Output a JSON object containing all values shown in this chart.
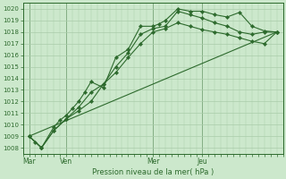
{
  "bg_color": "#cce8cc",
  "grid_color": "#aaccaa",
  "line_color": "#2d6a2d",
  "marker_color": "#2d6a2d",
  "title": "Pression niveau de la mer( hPa )",
  "ylim": [
    1007.5,
    1020.5
  ],
  "day_labels": [
    "Mar",
    "Ven",
    "Mer",
    "Jeu"
  ],
  "day_positions": [
    0,
    6,
    20,
    28
  ],
  "xlim": [
    -1,
    41
  ],
  "series1_x": [
    0,
    1,
    2,
    4,
    5,
    6,
    7,
    8,
    9,
    10,
    12,
    14,
    16,
    18,
    20,
    21,
    22,
    24,
    26,
    28,
    30,
    32,
    34,
    36,
    38,
    40
  ],
  "series1_y": [
    1009.0,
    1008.5,
    1008.0,
    1009.8,
    1010.4,
    1010.8,
    1011.4,
    1012.0,
    1012.8,
    1013.7,
    1013.2,
    1015.8,
    1016.5,
    1018.5,
    1018.5,
    1018.7,
    1019.0,
    1020.0,
    1019.8,
    1019.8,
    1019.5,
    1019.3,
    1019.7,
    1018.5,
    1018.1,
    1018.0
  ],
  "series2_x": [
    0,
    2,
    4,
    6,
    8,
    10,
    12,
    14,
    16,
    18,
    20,
    22,
    24,
    26,
    28,
    30,
    32,
    34,
    36,
    38,
    40
  ],
  "series2_y": [
    1009.0,
    1008.0,
    1009.5,
    1010.5,
    1011.5,
    1012.8,
    1013.5,
    1015.0,
    1016.2,
    1017.8,
    1018.3,
    1018.5,
    1019.8,
    1019.5,
    1019.2,
    1018.8,
    1018.5,
    1018.0,
    1017.8,
    1018.0,
    1018.0
  ],
  "series3_x": [
    0,
    2,
    4,
    6,
    8,
    10,
    12,
    14,
    16,
    18,
    20,
    22,
    24,
    26,
    28,
    30,
    32,
    34,
    36,
    38,
    40
  ],
  "series3_y": [
    1009.0,
    1008.0,
    1009.5,
    1010.5,
    1011.2,
    1012.0,
    1013.5,
    1014.5,
    1015.8,
    1017.0,
    1018.0,
    1018.3,
    1018.8,
    1018.5,
    1018.2,
    1018.0,
    1017.8,
    1017.5,
    1017.2,
    1017.0,
    1018.0
  ],
  "trend_x": [
    0,
    40
  ],
  "trend_y": [
    1009.0,
    1018.0
  ],
  "n_x_minor": 40
}
